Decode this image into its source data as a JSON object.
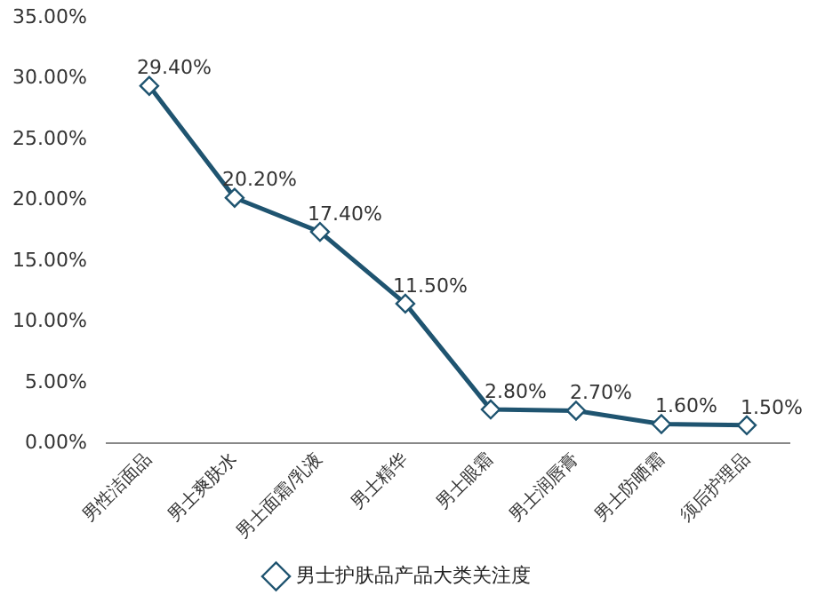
{
  "chart_data": {
    "type": "line",
    "categories": [
      "男性洁面品",
      "男士爽肤水",
      "男士面霜/乳液",
      "男士精华",
      "男士眼霜",
      "男士润唇膏",
      "男士防晒霜",
      "须后护理品"
    ],
    "series": [
      {
        "name": "男士护肤品产品大类关注度",
        "color": "#1f5470",
        "values": [
          29.4,
          20.2,
          17.4,
          11.5,
          2.8,
          2.7,
          1.6,
          1.5
        ],
        "value_labels": [
          "29.40%",
          "20.20%",
          "17.40%",
          "11.50%",
          "2.80%",
          "2.70%",
          "1.60%",
          "1.50%"
        ]
      }
    ],
    "ylim": [
      0,
      35
    ],
    "yticks": [
      {
        "value": 0,
        "label": "0.00%"
      },
      {
        "value": 5,
        "label": "5.00%"
      },
      {
        "value": 10,
        "label": "10.00%"
      },
      {
        "value": 15,
        "label": "15.00%"
      },
      {
        "value": 20,
        "label": "20.00%"
      },
      {
        "value": 25,
        "label": "25.00%"
      },
      {
        "value": 30,
        "label": "30.00%"
      },
      {
        "value": 35,
        "label": "35.00%"
      }
    ],
    "grid": false,
    "legend": "bottom",
    "marker": "diamond",
    "line_style": "solid"
  }
}
